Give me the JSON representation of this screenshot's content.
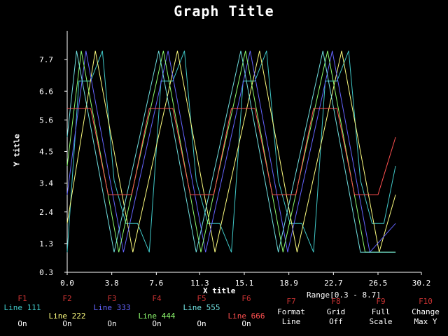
{
  "chart_data": {
    "type": "line",
    "title": "Graph Title",
    "xlabel": "X title",
    "ylabel": "Y title",
    "xlim": [
      0.0,
      30.2
    ],
    "ylim": [
      0.3,
      8.7
    ],
    "x_ticks": [
      "0.0",
      "3.8",
      "7.6",
      "11.3",
      "15.1",
      "18.9",
      "22.7",
      "26.5",
      "30.2"
    ],
    "y_ticks": [
      "0.3",
      "1.3",
      "2.4",
      "3.4",
      "4.5",
      "5.6",
      "6.6",
      "7.7"
    ],
    "grid": false,
    "series": [
      {
        "name": "Line 111",
        "color": "#40c8c8",
        "points": [
          [
            0,
            1
          ],
          [
            1,
            6.95
          ],
          [
            2,
            6.95
          ],
          [
            3,
            8
          ],
          [
            4,
            3.5
          ],
          [
            5,
            2
          ],
          [
            6,
            2
          ],
          [
            7,
            1
          ],
          [
            8,
            6.95
          ],
          [
            9,
            6.95
          ],
          [
            10,
            8
          ],
          [
            11,
            3.5
          ],
          [
            12,
            2
          ],
          [
            13,
            2
          ],
          [
            14,
            1
          ],
          [
            15,
            6.95
          ],
          [
            16,
            6.95
          ],
          [
            17,
            8
          ],
          [
            18,
            3.5
          ],
          [
            19,
            2
          ],
          [
            20,
            2
          ],
          [
            21,
            1
          ],
          [
            22,
            6.95
          ],
          [
            23,
            6.95
          ],
          [
            24,
            8
          ],
          [
            25,
            3.5
          ],
          [
            26,
            2
          ],
          [
            27,
            2
          ],
          [
            28,
            4
          ]
        ]
      },
      {
        "name": "Line 222",
        "color": "#ffff80",
        "points": [
          [
            0,
            2
          ],
          [
            2.4,
            8
          ],
          [
            5.6,
            1
          ],
          [
            9.4,
            8
          ],
          [
            12.6,
            1
          ],
          [
            16.4,
            8
          ],
          [
            19.6,
            1
          ],
          [
            23.4,
            8
          ],
          [
            26.6,
            1
          ],
          [
            28,
            3
          ]
        ]
      },
      {
        "name": "Line 333",
        "color": "#6464ff",
        "points": [
          [
            0,
            3
          ],
          [
            1.6,
            8
          ],
          [
            4.8,
            1
          ],
          [
            8.6,
            8
          ],
          [
            11.8,
            1
          ],
          [
            15.6,
            8
          ],
          [
            18.8,
            1
          ],
          [
            22.6,
            8
          ],
          [
            25.8,
            1
          ],
          [
            28,
            2
          ]
        ]
      },
      {
        "name": "Line 444",
        "color": "#90ff70",
        "points": [
          [
            0,
            4
          ],
          [
            1.2,
            8
          ],
          [
            4.4,
            1
          ],
          [
            8.2,
            8
          ],
          [
            11.4,
            1
          ],
          [
            15.2,
            8
          ],
          [
            18.4,
            1
          ],
          [
            22.2,
            8
          ],
          [
            25.4,
            1
          ],
          [
            28,
            1
          ]
        ]
      },
      {
        "name": "Line 555",
        "color": "#70e0e0",
        "points": [
          [
            0,
            5
          ],
          [
            0.8,
            8
          ],
          [
            4,
            1
          ],
          [
            7.8,
            8
          ],
          [
            11,
            1
          ],
          [
            14.8,
            8
          ],
          [
            18,
            1
          ],
          [
            21.8,
            8
          ],
          [
            25,
            1
          ],
          [
            28,
            1
          ]
        ]
      },
      {
        "name": "Line 666",
        "color": "#ff5050",
        "points": [
          [
            0,
            6
          ],
          [
            2,
            6
          ],
          [
            3.5,
            3
          ],
          [
            5.5,
            3
          ],
          [
            7,
            6
          ],
          [
            9,
            6
          ],
          [
            10.5,
            3
          ],
          [
            12.5,
            3
          ],
          [
            14,
            6
          ],
          [
            16,
            6
          ],
          [
            17.5,
            3
          ],
          [
            19.5,
            3
          ],
          [
            21,
            6
          ],
          [
            23,
            6
          ],
          [
            24.5,
            3
          ],
          [
            26.5,
            3
          ],
          [
            28,
            5
          ]
        ]
      }
    ]
  },
  "range_text": "Range[0.3 - 8.7]",
  "fkeys": [
    {
      "key": "F1",
      "label": "Line 111",
      "state": "On",
      "color": "#40c8c8"
    },
    {
      "key": "F2",
      "label": "Line 222",
      "state": "On",
      "color": "#ffff80"
    },
    {
      "key": "F3",
      "label": "Line 333",
      "state": "On",
      "color": "#6464ff"
    },
    {
      "key": "F4",
      "label": "Line 444",
      "state": "On",
      "color": "#90ff70"
    },
    {
      "key": "F5",
      "label": "Line 555",
      "state": "On",
      "color": "#70e0e0"
    },
    {
      "key": "F6",
      "label": "Line 666",
      "state": "On",
      "color": "#ff5050"
    },
    {
      "key": "F7",
      "label": "Format",
      "state": "Line",
      "color": "#ffffff"
    },
    {
      "key": "F8",
      "label": "Grid",
      "state": "Off",
      "color": "#ffffff"
    },
    {
      "key": "F9",
      "label": "Full",
      "state": "Scale",
      "color": "#ffffff"
    },
    {
      "key": "F10",
      "label": "Change",
      "state": "Max Y",
      "color": "#ffffff"
    }
  ]
}
